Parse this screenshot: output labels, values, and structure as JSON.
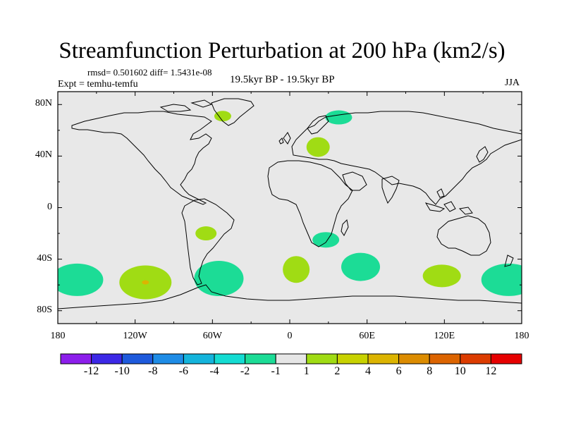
{
  "title": "Streamfunction Perturbation at 200 hPa (km2/s)",
  "stats": "rmsd= 0.501602 diff= 1.5431e-08",
  "experiment": "Expt = temhu-temfu",
  "period": "19.5kyr BP - 19.5kyr BP",
  "season": "JJA",
  "map": {
    "lat_labels": [
      "80N",
      "40N",
      "0",
      "40S",
      "80S"
    ],
    "lon_labels": [
      "180",
      "120W",
      "60W",
      "0",
      "60E",
      "120E",
      "180"
    ],
    "colors": {
      "background": "#e8e8e8",
      "neg1": "#1cdc96",
      "pos1": "#a0dc14",
      "pos2": "#dcb400"
    }
  },
  "anomalies": [
    {
      "name": "greenland",
      "lon": -52,
      "lat": 71,
      "value": 2
    },
    {
      "name": "barents",
      "lon": 38,
      "lat": 70,
      "value": -2
    },
    {
      "name": "eastern-europe",
      "lon": 22,
      "lat": 47,
      "value": 2
    },
    {
      "name": "south-america",
      "lon": -65,
      "lat": -20,
      "value": 2
    },
    {
      "name": "south-africa",
      "lon": 28,
      "lat": -25,
      "value": -2
    },
    {
      "name": "south-atlantic",
      "lon": 5,
      "lat": -48,
      "value": 2
    },
    {
      "name": "south-indian",
      "lon": 55,
      "lat": -46,
      "value": -2
    },
    {
      "name": "south-pacific",
      "lon": -112,
      "lat": -58,
      "value": 2
    },
    {
      "name": "south-pacific-core",
      "lon": -112,
      "lat": -58,
      "value": 4
    },
    {
      "name": "drake-passage",
      "lon": -55,
      "lat": -55,
      "value": -2
    },
    {
      "name": "southern-ocean-120e",
      "lon": 118,
      "lat": -53,
      "value": 2
    },
    {
      "name": "southern-ocean-east-pacific",
      "lon": -165,
      "lat": -56,
      "value": -2
    },
    {
      "name": "southern-ocean-dateline",
      "lon": 170,
      "lat": -56,
      "value": -2
    }
  ],
  "colorbar": {
    "colors": [
      "#8c1eeb",
      "#3c28e6",
      "#1e5adc",
      "#1e8ce6",
      "#14b4dc",
      "#14dcd2",
      "#1cdc96",
      "#e6e6e6",
      "#a0dc14",
      "#c8d200",
      "#dcb400",
      "#dc8c00",
      "#dc6400",
      "#dc3c00",
      "#e60000"
    ],
    "labels": [
      "-12",
      "-10",
      "-8",
      "-6",
      "-4",
      "-2",
      "-1",
      "1",
      "2",
      "4",
      "6",
      "8",
      "10",
      "12"
    ]
  }
}
